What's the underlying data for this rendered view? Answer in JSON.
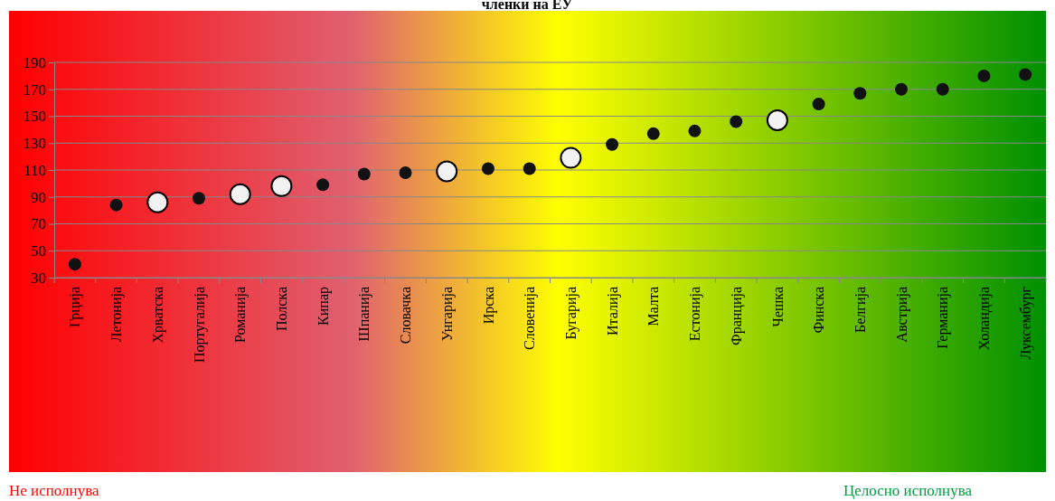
{
  "chart_data": {
    "type": "scatter",
    "title": "членки на ЕУ",
    "categories": [
      "Грција",
      "Летонија",
      "Хрватска",
      "Португалија",
      "Романија",
      "Полска",
      "Кипар",
      "Шпанија",
      "Словачка",
      "Унгарија",
      "Ирска",
      "Словенија",
      "Бугарија",
      "Италија",
      "Малта",
      "Естонија",
      "Франција",
      "Чешка",
      "Финска",
      "Белгија",
      "Австрија",
      "Германија",
      "Холандија",
      "Луксембург"
    ],
    "series": [
      {
        "color": "#111111",
        "values": [
          40,
          84,
          null,
          89,
          null,
          null,
          99,
          107,
          108,
          null,
          111,
          111,
          null,
          129,
          137,
          139,
          146,
          null,
          159,
          167,
          170,
          170,
          180,
          181
        ]
      },
      {
        "color": "#f2f2f2",
        "values": [
          null,
          null,
          86,
          null,
          92,
          98,
          null,
          null,
          null,
          109,
          null,
          null,
          119,
          null,
          null,
          null,
          null,
          147,
          null,
          null,
          null,
          null,
          null,
          null
        ]
      }
    ],
    "ylim": [
      30,
      190
    ],
    "yticks": [
      30,
      50,
      70,
      90,
      110,
      130,
      150,
      170,
      190
    ],
    "grid": "y",
    "marker": "circle",
    "annotations": [
      "Не исполнува",
      "Целосно исполнува"
    ]
  }
}
